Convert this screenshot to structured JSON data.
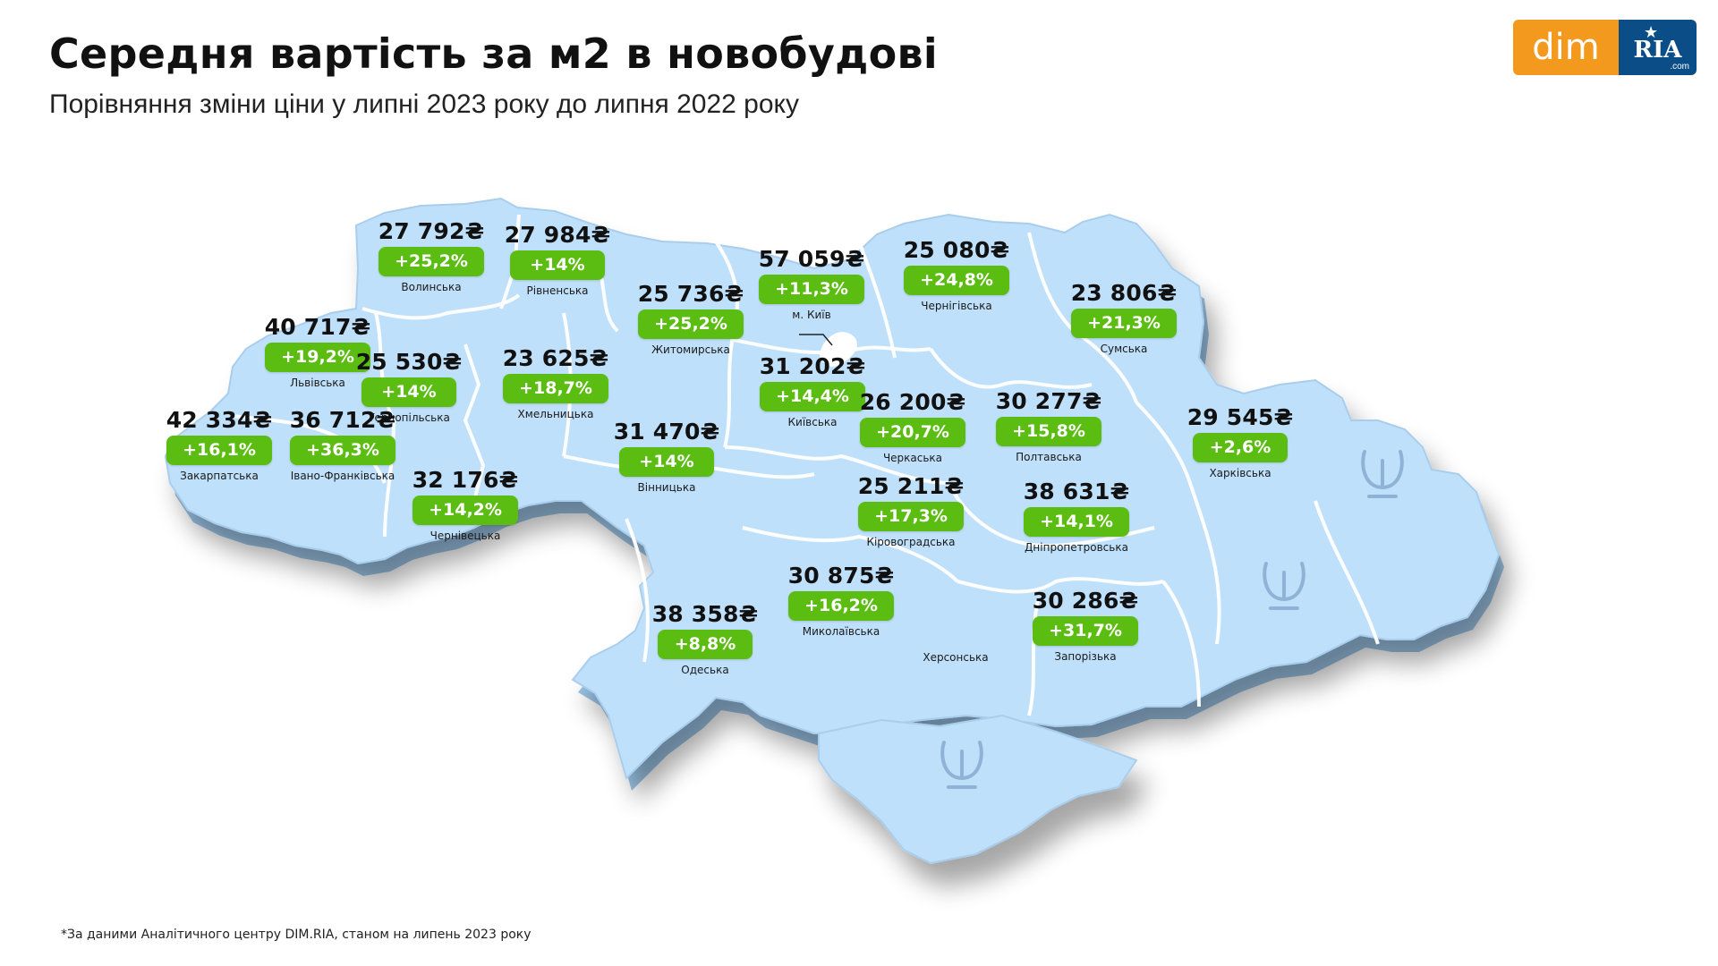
{
  "header": {
    "title": "Середня вартість за м2 в новобудові",
    "subtitle": "Порівняння зміни ціни у липні 2023 року до липня 2022 року"
  },
  "logo": {
    "left": "dim",
    "right": "RIA",
    "right_suffix": ".com"
  },
  "colors": {
    "badge": "#5bbd12",
    "map_fill": "#bfe0fa",
    "map_edge": "#9cc4e6",
    "logo_orange": "#f39a1e",
    "logo_blue": "#0b4d86"
  },
  "regions": [
    {
      "name": "Волинська",
      "price": "27 792₴",
      "change": "+25,2%"
    },
    {
      "name": "Рівненська",
      "price": "27 984₴",
      "change": "+14%"
    },
    {
      "name": "Житомирська",
      "price": "25 736₴",
      "change": "+25,2%"
    },
    {
      "name": "м. Київ",
      "price": "57 059₴",
      "change": "+11,3%"
    },
    {
      "name": "Чернігівська",
      "price": "25 080₴",
      "change": "+24,8%"
    },
    {
      "name": "Сумська",
      "price": "23 806₴",
      "change": "+21,3%"
    },
    {
      "name": "Львівська",
      "price": "40 717₴",
      "change": "+19,2%"
    },
    {
      "name": "Тернопільська",
      "price": "25 530₴",
      "change": "+14%"
    },
    {
      "name": "Хмельницька",
      "price": "23 625₴",
      "change": "+18,7%"
    },
    {
      "name": "Київська",
      "price": "31 202₴",
      "change": "+14,4%"
    },
    {
      "name": "Закарпатська",
      "price": "42 334₴",
      "change": "+16,1%"
    },
    {
      "name": "Івано-Франківська",
      "price": "36 712₴",
      "change": "+36,3%"
    },
    {
      "name": "Вінницька",
      "price": "31 470₴",
      "change": "+14%"
    },
    {
      "name": "Черкаська",
      "price": "26 200₴",
      "change": "+20,7%"
    },
    {
      "name": "Полтавська",
      "price": "30 277₴",
      "change": "+15,8%"
    },
    {
      "name": "Харківська",
      "price": "29 545₴",
      "change": "+2,6%"
    },
    {
      "name": "Чернівецька",
      "price": "32 176₴",
      "change": "+14,2%"
    },
    {
      "name": "Кіровоградська",
      "price": "25 211₴",
      "change": "+17,3%"
    },
    {
      "name": "Дніпропетровська",
      "price": "38 631₴",
      "change": "+14,1%"
    },
    {
      "name": "Миколаївська",
      "price": "30 875₴",
      "change": "+16,2%"
    },
    {
      "name": "Одеська",
      "price": "38 358₴",
      "change": "+8,8%"
    },
    {
      "name": "Запорізька",
      "price": "30 286₴",
      "change": "+31,7%"
    },
    {
      "name": "Херсонська",
      "price": "",
      "change": ""
    }
  ],
  "footnote": "*За даними Аналітичного центру DIM.RIA, станом на липень 2023 року"
}
